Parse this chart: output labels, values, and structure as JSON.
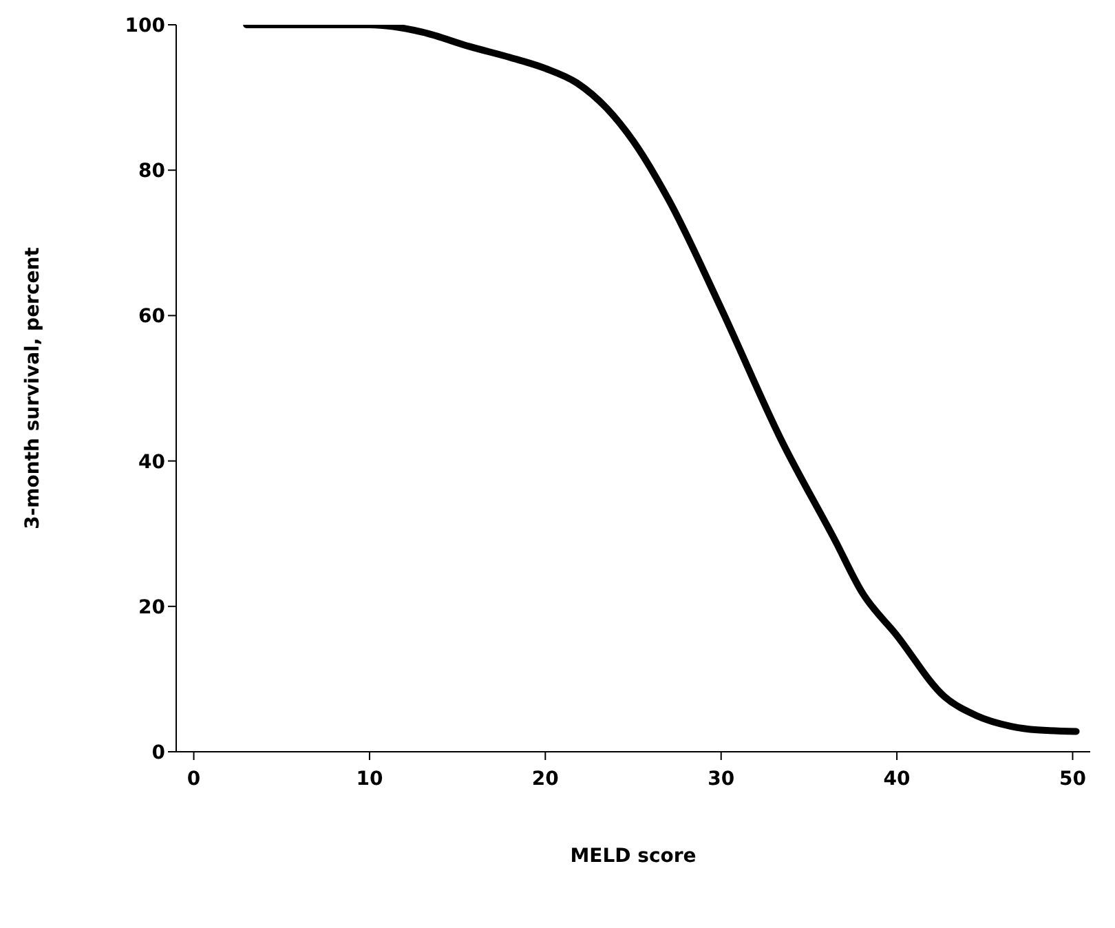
{
  "chart_data": {
    "type": "line",
    "xlabel": "MELD score",
    "ylabel": "3-month survival, percent",
    "color": "#000000",
    "x": [
      3,
      6,
      10,
      13,
      15.7,
      18,
      20,
      21.8,
      23.5,
      25,
      27,
      30,
      33.4,
      36.5,
      38,
      40,
      42.7,
      44.5,
      46.5,
      48,
      50.2
    ],
    "values": [
      100,
      100,
      100,
      99,
      97,
      95.5,
      94,
      92,
      88.5,
      84,
      76,
      61,
      43,
      29,
      22,
      16,
      7.6,
      5,
      3.5,
      3,
      2.8
    ],
    "xlim": [
      -1,
      51
    ],
    "xticks": [
      0,
      10,
      20,
      30,
      40,
      50
    ],
    "ylim": [
      0,
      100
    ],
    "yticks": [
      0,
      20,
      40,
      60,
      80,
      100
    ]
  }
}
